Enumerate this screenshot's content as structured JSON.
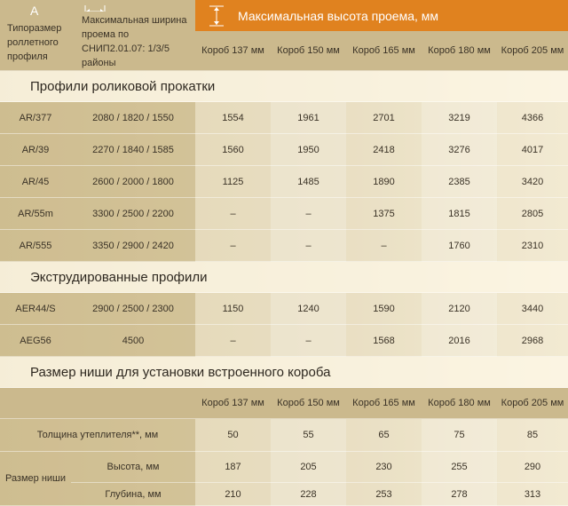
{
  "header": {
    "corner_letter": "A",
    "profile_label": "Типоразмер роллетного профиля",
    "width_label": "Максимальная ширина проема по СНИП2.01.07: 1/3/5 районы",
    "height_label": "Максимальная высота проема, мм",
    "boxes": [
      "Короб 137 мм",
      "Короб 150 мм",
      "Короб 165 мм",
      "Короб 180 мм",
      "Короб 205 мм"
    ]
  },
  "sections": [
    {
      "title": "Профили роликовой прокатки",
      "rows": [
        [
          "AR/377",
          "2080 / 1820 / 1550",
          1554,
          1961,
          2701,
          3219,
          4366
        ],
        [
          "AR/39",
          "2270 / 1840 / 1585",
          1560,
          1950,
          2418,
          3276,
          4017
        ],
        [
          "AR/45",
          "2600 / 2000 / 1800",
          1125,
          1485,
          1890,
          2385,
          3420
        ],
        [
          "AR/55m",
          "3300 / 2500 / 2200",
          "–",
          "–",
          1375,
          1815,
          2805
        ],
        [
          "AR/555",
          "3350 / 2900 / 2420",
          "–",
          "–",
          "–",
          1760,
          2310
        ]
      ]
    },
    {
      "title": "Экструдированные профили",
      "rows": [
        [
          "AER44/S",
          "2900 / 2500 / 2300",
          1150,
          1240,
          1590,
          2120,
          3440
        ],
        [
          "AEG56",
          "4500",
          "–",
          "–",
          1568,
          2016,
          2968
        ]
      ]
    }
  ],
  "niche": {
    "title": "Размер ниши для установки встроенного короба",
    "boxes": [
      "Короб 137 мм",
      "Короб 150 мм",
      "Короб 165 мм",
      "Короб 180 мм",
      "Короб 205 мм"
    ],
    "insulation": {
      "label": "Толщина утеплителя**, мм",
      "values": [
        50,
        55,
        65,
        75,
        85
      ]
    },
    "size_label": "Размер ниши",
    "height": {
      "label": "Высота, мм",
      "values": [
        187,
        205,
        230,
        255,
        290
      ]
    },
    "depth": {
      "label": "Глубина, мм",
      "values": [
        210,
        228,
        253,
        278,
        313
      ]
    }
  }
}
